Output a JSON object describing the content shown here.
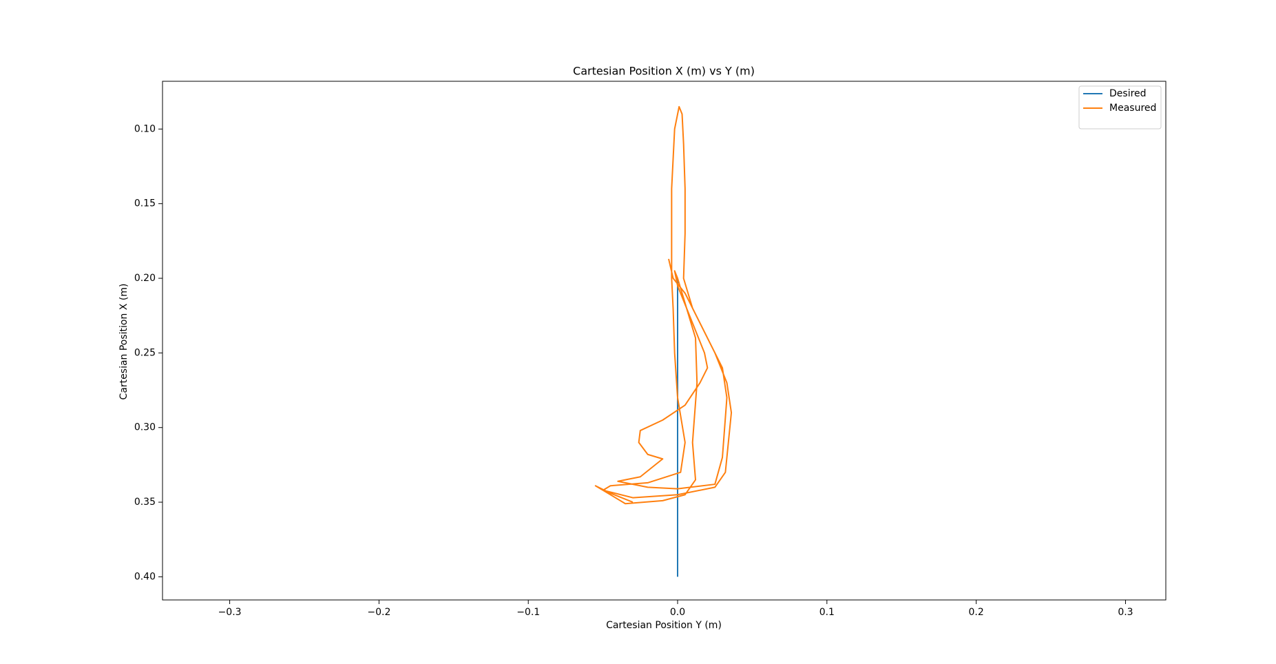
{
  "chart_data": {
    "type": "line",
    "title": "Cartesian Position X (m) vs Y (m)",
    "x_label": "Cartesian Position Y (m)",
    "y_label": "Cartesian Position X (m)",
    "xlim": [
      -0.345,
      0.327
    ],
    "ylim": [
      0.4155,
      0.068
    ],
    "xticks": [
      {
        "value": -0.3,
        "label": "−0.3"
      },
      {
        "value": -0.2,
        "label": "−0.2"
      },
      {
        "value": -0.1,
        "label": "−0.1"
      },
      {
        "value": 0,
        "label": "0.0"
      },
      0.1,
      0.2,
      0.3
    ],
    "yticks": [
      {
        "value": 0.1,
        "label": "0.10"
      },
      0.15,
      {
        "value": 0.2,
        "label": "0.20"
      },
      0.25,
      {
        "value": 0.3,
        "label": "0.30"
      },
      0.35,
      {
        "value": 0.4,
        "label": "0.40"
      }
    ],
    "legend": "upper right",
    "series": [
      {
        "name": "Desired",
        "color": "#1f77b4",
        "x": [
          0,
          0
        ],
        "values": [
          0.2,
          0.4
        ]
      },
      {
        "name": "Measured",
        "color": "#ff7f0e",
        "x": [
          -0.006,
          -0.003,
          0.005,
          0.015,
          0.025,
          0.033,
          0.036,
          0.034,
          0.032,
          0.025,
          0.0,
          -0.03,
          -0.05,
          -0.045,
          -0.02,
          0.002,
          0.005,
          0.0,
          -0.002,
          -0.003,
          -0.004,
          -0.004,
          -0.004,
          -0.003,
          -0.002,
          0.0,
          0.001,
          0.003,
          0.004,
          0.005,
          0.005,
          0.004,
          0.01,
          0.02,
          0.03,
          0.033,
          0.03,
          0.025,
          0.0,
          -0.02,
          -0.04,
          -0.025,
          -0.015,
          -0.01,
          -0.02,
          -0.026,
          -0.025,
          -0.01,
          0.005,
          0.015,
          0.02,
          0.018,
          0.01,
          0.0,
          -0.002,
          0.0,
          0.012,
          0.013,
          0.01,
          0.012,
          0.005,
          -0.01,
          -0.035,
          -0.055,
          -0.045,
          -0.03
        ],
        "values": [
          0.187,
          0.2,
          0.21,
          0.23,
          0.25,
          0.27,
          0.29,
          0.31,
          0.33,
          0.34,
          0.345,
          0.347,
          0.342,
          0.339,
          0.337,
          0.33,
          0.31,
          0.28,
          0.25,
          0.22,
          0.2,
          0.17,
          0.14,
          0.12,
          0.1,
          0.09,
          0.085,
          0.09,
          0.11,
          0.14,
          0.17,
          0.2,
          0.22,
          0.24,
          0.26,
          0.28,
          0.32,
          0.338,
          0.341,
          0.34,
          0.336,
          0.333,
          0.325,
          0.321,
          0.318,
          0.31,
          0.302,
          0.295,
          0.285,
          0.27,
          0.26,
          0.25,
          0.23,
          0.205,
          0.195,
          0.2,
          0.24,
          0.27,
          0.31,
          0.335,
          0.345,
          0.349,
          0.351,
          0.339,
          0.344,
          0.35
        ]
      }
    ]
  }
}
